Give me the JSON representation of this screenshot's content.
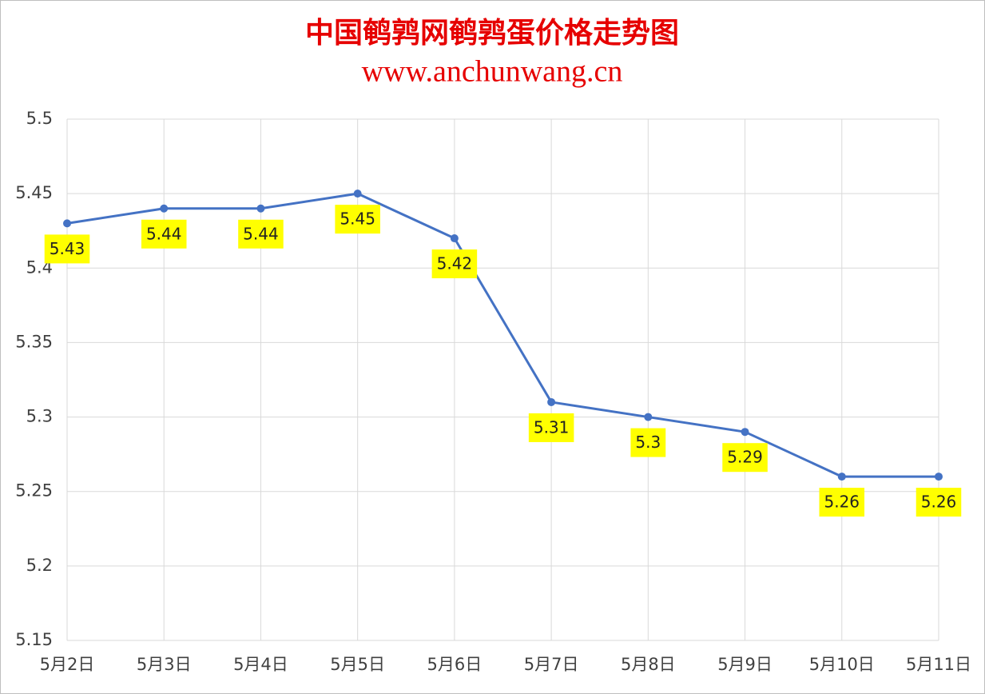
{
  "chart_data": {
    "type": "line",
    "title": "中国鹌鹑网鹌鹑蛋价格走势图",
    "subtitle": "www.anchunwang.cn",
    "categories": [
      "5月2日",
      "5月3日",
      "5月4日",
      "5月5日",
      "5月6日",
      "5月7日",
      "5月8日",
      "5月9日",
      "5月10日",
      "5月11日"
    ],
    "series": [
      {
        "color": "#4472c4",
        "values": [
          5.43,
          5.44,
          5.44,
          5.45,
          5.42,
          5.31,
          5.3,
          5.29,
          5.26,
          5.26
        ]
      }
    ],
    "ylim": [
      5.15,
      5.5
    ],
    "yticks": [
      5.15,
      5.2,
      5.25,
      5.3,
      5.35,
      5.4,
      5.45,
      5.5
    ],
    "grid": true
  }
}
